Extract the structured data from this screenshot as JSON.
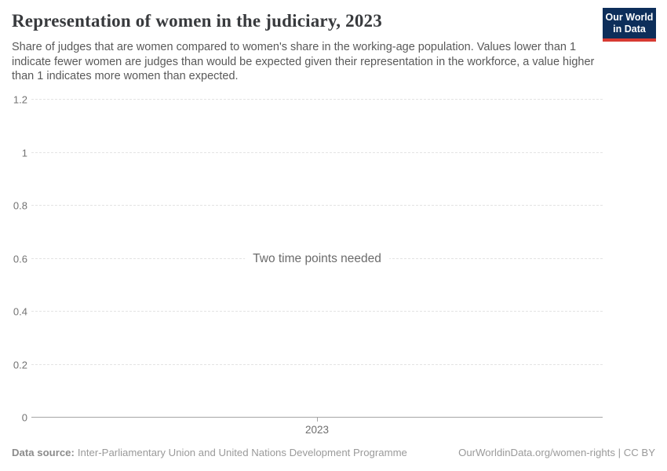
{
  "header": {
    "title": "Representation of women in the judiciary, 2023",
    "subtitle": "Share of judges that are women compared to women's share in the working-age population. Values lower than 1 indicate fewer women are judges than would be expected given their representation in the workforce, a value higher than 1 indicates more women than expected.",
    "logo": {
      "line1": "Our World",
      "line2": "in Data",
      "bg": "#0d2e5a",
      "accent": "#d73a32"
    }
  },
  "chart_data": {
    "type": "line",
    "title": "Representation of women in the judiciary, 2023",
    "series": [],
    "message": "Two time points needed",
    "xticks": [
      "2023"
    ],
    "yticks": [
      "0",
      "0.2",
      "0.4",
      "0.6",
      "0.8",
      "1",
      "1.2"
    ],
    "ylim": [
      0,
      1.2
    ],
    "xlabel": "",
    "ylabel": "",
    "grid": "horizontal-dashed",
    "legend": "none"
  },
  "footer": {
    "datasource_label": "Data source:",
    "datasource_value": "Inter-Parliamentary Union and United Nations Development Programme",
    "attribution": "OurWorldinData.org/women-rights | CC BY"
  }
}
